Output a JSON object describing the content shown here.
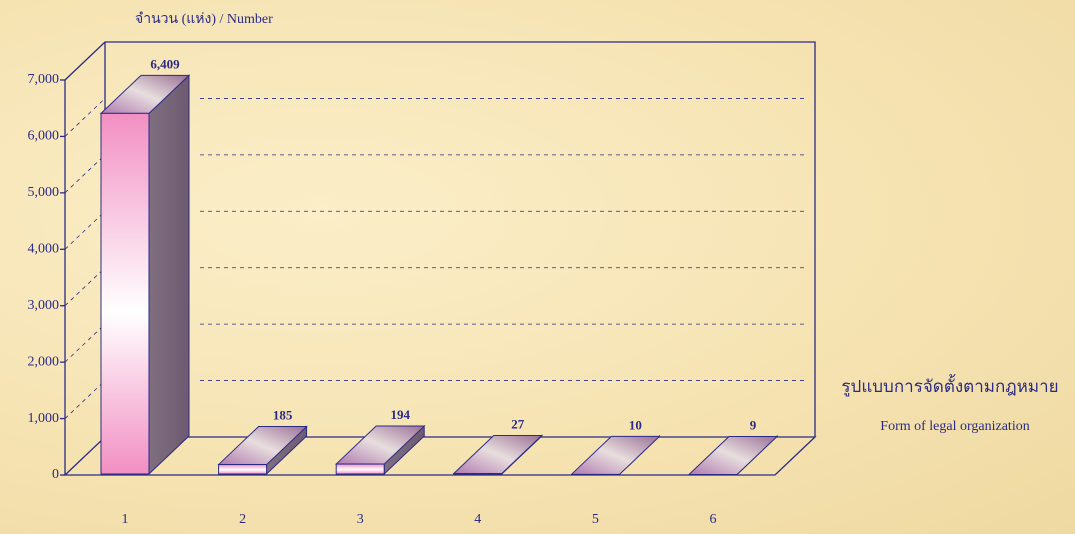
{
  "chart_data": {
    "type": "bar3d",
    "y_axis_label": "จำนวน (แห่ง) / Number",
    "x_axis_label": [
      "รูปแบบการจัดตั้งตามกฎหมาย",
      "Form of  legal organization"
    ],
    "categories": [
      "1",
      "2",
      "3",
      "4",
      "5",
      "6"
    ],
    "values": [
      6409,
      185,
      194,
      27,
      10,
      9
    ],
    "value_labels": [
      "6,409",
      "185",
      "194",
      "27",
      "10",
      "9"
    ],
    "ylim": [
      0,
      7000
    ],
    "yticks": [
      0,
      {
        "value": 1000,
        "label": "1,000"
      },
      {
        "value": 2000,
        "label": "2,000"
      },
      {
        "value": 3000,
        "label": "3,000"
      },
      {
        "value": 4000,
        "label": "4,000"
      },
      {
        "value": 5000,
        "label": "5,000"
      },
      {
        "value": 6000,
        "label": "6,000"
      },
      {
        "value": 7000,
        "label": "7,000"
      }
    ],
    "grid": true,
    "color": "#f49ac8"
  }
}
